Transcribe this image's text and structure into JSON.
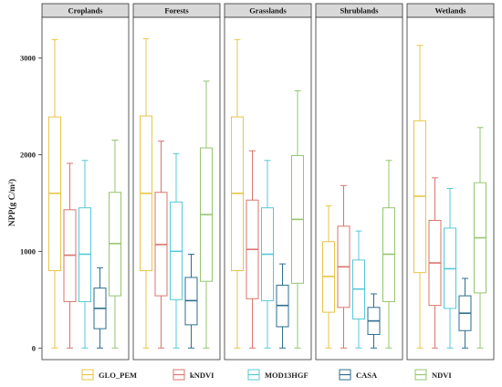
{
  "chart_data": {
    "type": "boxplot",
    "ylabel": "NPP(g C/m²)",
    "ylim": [
      -120,
      3420
    ],
    "yticks": [
      0,
      1000,
      2000,
      3000
    ],
    "panels": [
      "Croplands",
      "Forests",
      "Grasslands",
      "Shrublands",
      "Wetlands"
    ],
    "series": [
      {
        "name": "GLO_PEM",
        "color": "#E8C547"
      },
      {
        "name": "kNDVI",
        "color": "#D9756C"
      },
      {
        "name": "MOD13HGF",
        "color": "#56C8D8"
      },
      {
        "name": "CASA",
        "color": "#2E6E8E"
      },
      {
        "name": "NDVI",
        "color": "#95C56F"
      }
    ],
    "boxes": [
      [
        {
          "min": 0,
          "q1": 800,
          "median": 1600,
          "q3": 2390,
          "max": 3190
        },
        {
          "min": 0,
          "q1": 480,
          "median": 960,
          "q3": 1430,
          "max": 1910
        },
        {
          "min": 0,
          "q1": 480,
          "median": 970,
          "q3": 1450,
          "max": 1940
        },
        {
          "min": 0,
          "q1": 200,
          "median": 410,
          "q3": 620,
          "max": 830
        },
        {
          "min": 0,
          "q1": 540,
          "median": 1080,
          "q3": 1610,
          "max": 2150
        }
      ],
      [
        {
          "min": 0,
          "q1": 800,
          "median": 1600,
          "q3": 2400,
          "max": 3200
        },
        {
          "min": 0,
          "q1": 540,
          "median": 1070,
          "q3": 1610,
          "max": 2140
        },
        {
          "min": 0,
          "q1": 500,
          "median": 1000,
          "q3": 1510,
          "max": 2010
        },
        {
          "min": 0,
          "q1": 240,
          "median": 490,
          "q3": 730,
          "max": 970
        },
        {
          "min": 0,
          "q1": 690,
          "median": 1380,
          "q3": 2070,
          "max": 2760
        }
      ],
      [
        {
          "min": 0,
          "q1": 800,
          "median": 1600,
          "q3": 2390,
          "max": 3190
        },
        {
          "min": 0,
          "q1": 510,
          "median": 1020,
          "q3": 1530,
          "max": 2040
        },
        {
          "min": 0,
          "q1": 490,
          "median": 970,
          "q3": 1450,
          "max": 1940
        },
        {
          "min": 0,
          "q1": 220,
          "median": 440,
          "q3": 650,
          "max": 870
        },
        {
          "min": 0,
          "q1": 670,
          "median": 1330,
          "q3": 1990,
          "max": 2660
        }
      ],
      [
        {
          "min": 0,
          "q1": 370,
          "median": 740,
          "q3": 1100,
          "max": 1470
        },
        {
          "min": 0,
          "q1": 420,
          "median": 840,
          "q3": 1260,
          "max": 1680
        },
        {
          "min": 0,
          "q1": 300,
          "median": 610,
          "q3": 910,
          "max": 1210
        },
        {
          "min": 0,
          "q1": 140,
          "median": 280,
          "q3": 420,
          "max": 560
        },
        {
          "min": 0,
          "q1": 480,
          "median": 970,
          "q3": 1450,
          "max": 1940
        }
      ],
      [
        {
          "min": 0,
          "q1": 780,
          "median": 1570,
          "q3": 2350,
          "max": 3130
        },
        {
          "min": 0,
          "q1": 440,
          "median": 880,
          "q3": 1320,
          "max": 1760
        },
        {
          "min": 0,
          "q1": 410,
          "median": 820,
          "q3": 1240,
          "max": 1650
        },
        {
          "min": 0,
          "q1": 180,
          "median": 360,
          "q3": 540,
          "max": 720
        },
        {
          "min": 0,
          "q1": 570,
          "median": 1140,
          "q3": 1710,
          "max": 2280
        }
      ]
    ]
  }
}
